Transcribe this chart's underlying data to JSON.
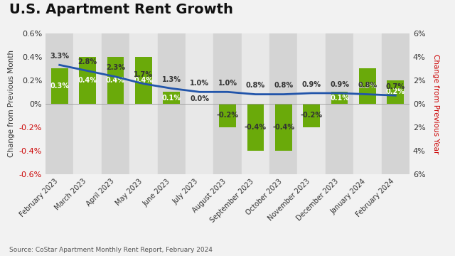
{
  "title": "U.S. Apartment Rent Growth",
  "source": "Source: CoStar Apartment Monthly Rent Report, February 2024",
  "categories": [
    "February 2023",
    "March 2023",
    "April 2023",
    "May 2023",
    "June 2023",
    "July 2023",
    "August 2023",
    "September 2023",
    "October 2023",
    "November 2023",
    "December 2023",
    "January 2024",
    "February 2024"
  ],
  "monthly_values": [
    0.3,
    0.4,
    0.4,
    0.4,
    0.1,
    0.0,
    -0.2,
    -0.4,
    -0.4,
    -0.2,
    0.1,
    0.3,
    0.2
  ],
  "annual_values": [
    3.3,
    2.8,
    2.3,
    1.7,
    1.3,
    1.0,
    1.0,
    0.8,
    0.8,
    0.9,
    0.9,
    0.8,
    0.7
  ],
  "monthly_labels": [
    "0.3%",
    "0.4%",
    "0.4%",
    "0.4%",
    "0.1%",
    "0.0%",
    "-0.2%",
    "-0.4%",
    "-0.4%",
    "-0.2%",
    "0.1%",
    "0.3%",
    "0.2%"
  ],
  "annual_labels": [
    "3.3%",
    "2.8%",
    "2.3%",
    "1.7%",
    "1.3%",
    "1.0%",
    "1.0%",
    "0.8%",
    "0.8%",
    "0.9%",
    "0.9%",
    "0.8%",
    "0.7%"
  ],
  "bar_color": "#6aaa0a",
  "line_color": "#2255aa",
  "left_ylim": [
    -0.6,
    0.6
  ],
  "right_ylim": [
    -6,
    6
  ],
  "left_yticks": [
    -0.6,
    -0.4,
    -0.2,
    0.0,
    0.2,
    0.4,
    0.6
  ],
  "right_yticks": [
    -6,
    -4,
    -2,
    0,
    2,
    4,
    6
  ],
  "ylabel_left": "Change from Previous Month",
  "ylabel_right": "Change from Previous Year",
  "bg_color": "#f2f2f2",
  "plot_bg": "#e8e8e8",
  "stripe_color": "#d4d4d4",
  "title_fontsize": 14,
  "label_fontsize": 7,
  "monthly_label_color_pos": "#ffffff",
  "monthly_label_color_neg": "#333333"
}
